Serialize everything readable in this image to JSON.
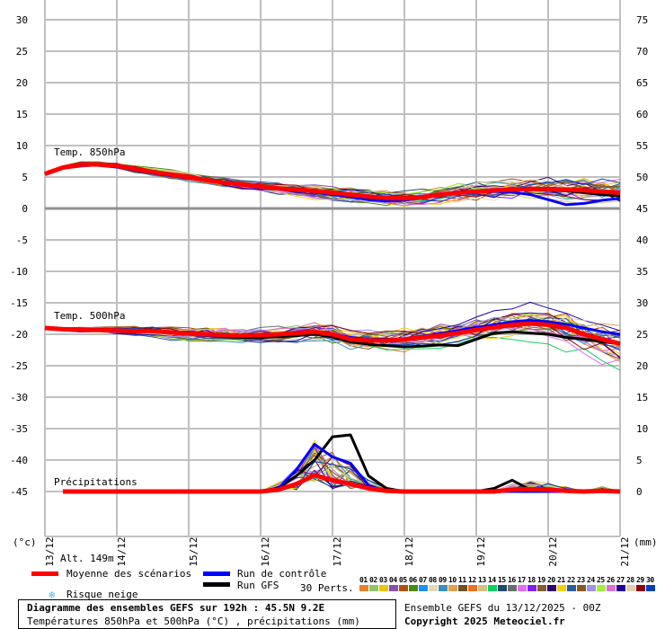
{
  "chart_data": {
    "type": "line",
    "title": "Diagramme des ensembles GEFS sur 192h : 45.5N 9.2E",
    "subtitle": "Températures 850hPa et 500hPa (°C) , précipitations (mm)",
    "run_info": "Ensemble GEFS du 13/12/2025 - 00Z",
    "copyright": "Copyright 2025 Meteociel.fr",
    "left_axis_unit": "(°c)",
    "right_axis_unit": "(mm)",
    "altitude": "Alt. 149m",
    "left_ticks": [
      30,
      25,
      20,
      15,
      10,
      5,
      0,
      -5,
      -10,
      -15,
      -20,
      -25,
      -30,
      -35,
      -40,
      -45
    ],
    "right_ticks": [
      75,
      70,
      65,
      60,
      55,
      50,
      45,
      40,
      35,
      30,
      25,
      20,
      15,
      10,
      5,
      0
    ],
    "ylim": [
      -45,
      30
    ],
    "precip_ylim_mm": [
      0,
      75
    ],
    "x_tick_labels": [
      "13/12",
      "14/12",
      "15/12",
      "16/12",
      "17/12",
      "18/12",
      "19/12",
      "20/12",
      "21/12"
    ],
    "time_step_hours": 6,
    "grid": true,
    "panel_labels": {
      "t850": "Temp. 850hPa",
      "t500": "Temp. 500hPa",
      "precip": "Précipitations"
    },
    "series": [
      {
        "name": "Moyenne des scénarios",
        "color": "#ff0000",
        "width": 5,
        "t850": [
          5.5,
          6.5,
          7,
          7,
          6.8,
          6.3,
          5.8,
          5.4,
          5,
          4.5,
          4.1,
          3.8,
          3.5,
          3.2,
          3,
          2.8,
          2.5,
          2.2,
          1.9,
          1.7,
          1.6,
          1.8,
          2.2,
          2.5,
          2.7,
          2.9,
          3,
          3.1,
          3.1,
          3,
          2.9,
          2.7,
          2.5
        ],
        "t500": [
          -19,
          -19.2,
          -19.3,
          -19.3,
          -19.4,
          -19.5,
          -19.5,
          -19.7,
          -19.9,
          -20,
          -20.1,
          -20.2,
          -20.1,
          -20,
          -19.8,
          -19.6,
          -20,
          -20.8,
          -21,
          -21,
          -20.8,
          -20.5,
          -20.2,
          -19.8,
          -19.3,
          -18.9,
          -18.5,
          -18.3,
          -18.5,
          -19,
          -20,
          -20.8,
          -21.5
        ],
        "precip": [
          null,
          0,
          0,
          0,
          0,
          0,
          0,
          0,
          0,
          0,
          0,
          0,
          0,
          0.3,
          1.2,
          2.6,
          1.8,
          1.2,
          0.5,
          0.1,
          0,
          0,
          0,
          0,
          0,
          0,
          0.3,
          0.4,
          0.3,
          0.1,
          0,
          0.1,
          0
        ]
      },
      {
        "name": "Run de contrôle",
        "color": "#0000ff",
        "width": 3,
        "t850": [
          5.5,
          6.4,
          6.8,
          6.9,
          6.6,
          6.1,
          5.6,
          5.2,
          4.8,
          4.4,
          4,
          3.7,
          3.4,
          3.1,
          2.9,
          2.6,
          2.2,
          1.8,
          1.4,
          1.2,
          1.3,
          1.7,
          2.1,
          2.4,
          2.6,
          2.7,
          2.6,
          2.2,
          1.4,
          0.6,
          0.8,
          1.3,
          1.6
        ],
        "t500": [
          -19,
          -19.3,
          -19.5,
          -19.4,
          -19.6,
          -19.7,
          -19.6,
          -19.8,
          -20,
          -20.2,
          -20.3,
          -20.2,
          -20,
          -19.9,
          -19.7,
          -19.6,
          -19.9,
          -20.5,
          -20.8,
          -20.9,
          -20.7,
          -20.3,
          -19.9,
          -19.4,
          -18.9,
          -18.5,
          -18,
          -17.8,
          -18,
          -18.4,
          -19,
          -19.6,
          -20
        ],
        "precip": [
          null,
          0,
          0,
          0,
          0,
          0,
          0,
          0,
          0,
          0,
          0,
          0,
          0,
          0.5,
          3.5,
          7.5,
          5.5,
          4.5,
          1,
          0,
          0,
          0,
          0,
          0,
          0,
          0,
          0,
          0,
          0,
          0,
          0,
          0,
          0
        ]
      },
      {
        "name": "Run GFS",
        "color": "#000000",
        "width": 3,
        "t850": [
          5.5,
          6.6,
          7.1,
          7.1,
          6.9,
          6.4,
          5.9,
          5.5,
          5.1,
          4.6,
          4.2,
          3.9,
          3.6,
          3.3,
          3.1,
          2.9,
          2.6,
          2.2,
          1.9,
          1.8,
          1.7,
          1.9,
          2.3,
          2.6,
          2.8,
          2.9,
          3,
          3,
          2.9,
          2.8,
          2.5,
          2.2,
          2
        ],
        "t500": [
          -19,
          -19.1,
          -19.2,
          -19.3,
          -19.5,
          -19.6,
          -19.6,
          -19.8,
          -20,
          -20.2,
          -20.4,
          -20.5,
          -20.5,
          -20.4,
          -20.2,
          -20,
          -20.4,
          -21.2,
          -21.6,
          -21.8,
          -22,
          -21.9,
          -21.7,
          -21.8,
          -20.8,
          -19.8,
          -19.6,
          -19.8,
          -20,
          -20.5,
          -20.8,
          -21.2,
          -21.5
        ],
        "precip": [
          null,
          0,
          0,
          0,
          0,
          0.1,
          0,
          0,
          0,
          0,
          0,
          0,
          0,
          0.6,
          2.5,
          5,
          8.7,
          9,
          2.5,
          0.5,
          0,
          0,
          0,
          0,
          0,
          0.5,
          1.8,
          0.3,
          0,
          0,
          0,
          0,
          0
        ]
      }
    ],
    "members": {
      "count_label": "30 Perts.",
      "numbers": [
        "01",
        "02",
        "03",
        "04",
        "05",
        "06",
        "07",
        "08",
        "09",
        "10",
        "11",
        "12",
        "13",
        "14",
        "15",
        "16",
        "17",
        "18",
        "19",
        "20",
        "21",
        "22",
        "23",
        "24",
        "25",
        "26",
        "27",
        "28",
        "29",
        "30"
      ],
      "colors": [
        "#e8822a",
        "#8fc46a",
        "#f2c400",
        "#8a4fae",
        "#b0520d",
        "#4f8a10",
        "#1e8ff0",
        "#e8d8b0",
        "#3b8fbf",
        "#e0a050",
        "#6a5226",
        "#f07020",
        "#d8c080",
        "#10d060",
        "#204a6a",
        "#6a7070",
        "#e070f0",
        "#8020f0",
        "#806030",
        "#300070",
        "#f0d000",
        "#2a5aa0",
        "#8a5a20",
        "#a090f0",
        "#a0f040",
        "#e070d0",
        "#2000a0",
        "#e0d0b0",
        "#900010",
        "#0040c0"
      ],
      "spread_t850": [
        0.2,
        0.3,
        0.4,
        0.4,
        0.4,
        0.5,
        0.5,
        0.6,
        0.6,
        0.7,
        0.7,
        0.8,
        0.8,
        0.9,
        0.9,
        1,
        1,
        1.1,
        1.1,
        1.2,
        1.2,
        1.2,
        1.3,
        1.3,
        1.4,
        1.4,
        1.5,
        1.5,
        1.6,
        1.7,
        1.8,
        1.9,
        2
      ],
      "spread_t500": [
        0.2,
        0.3,
        0.4,
        0.5,
        0.6,
        0.7,
        0.8,
        0.9,
        1,
        1,
        1.1,
        1.1,
        1.2,
        1.2,
        1.3,
        1.3,
        1.4,
        1.4,
        1.5,
        1.5,
        1.6,
        1.6,
        1.7,
        1.8,
        1.9,
        2,
        2.1,
        2.2,
        2.3,
        2.4,
        2.5,
        2.6,
        2.7
      ],
      "max_precip_mm": 14
    }
  },
  "legend": {
    "mean": "Moyenne des scénarios",
    "control": "Run de contrôle",
    "gfs": "Run GFS",
    "snow": "Risque neige",
    "perts": "30 Perts."
  }
}
